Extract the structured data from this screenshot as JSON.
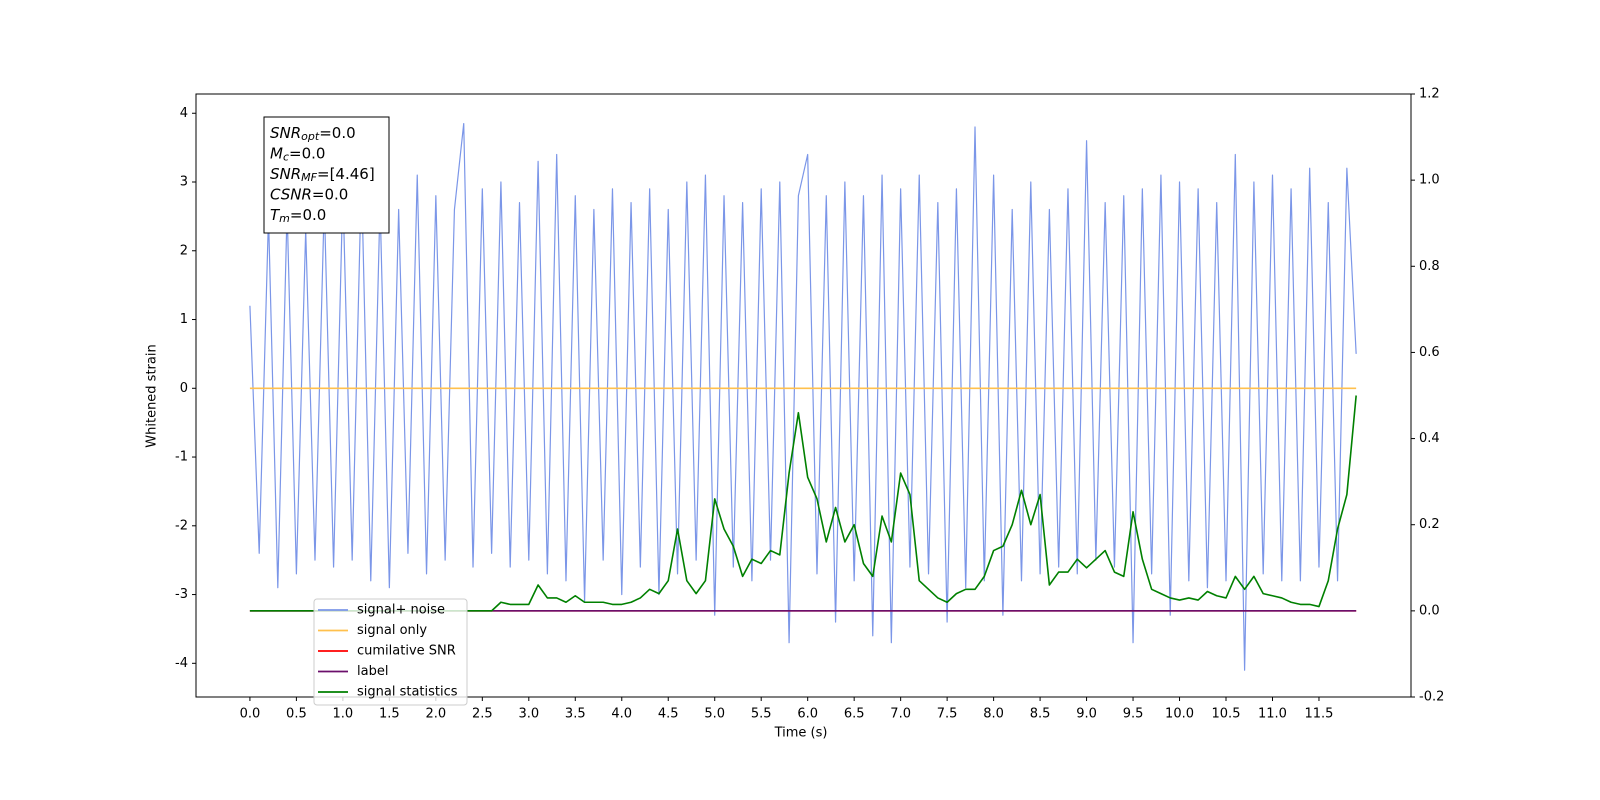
{
  "chart_data": {
    "type": "line",
    "xlabel": "Time (s)",
    "ylabel": "Whitened strain",
    "xlim": [
      -0.58,
      12.49
    ],
    "ylim": [
      -4.49,
      4.28
    ],
    "y2lim": [
      -0.2,
      1.2
    ],
    "xticks": [
      {
        "value": 0,
        "label": "0.0"
      },
      0.5,
      {
        "value": 1,
        "label": "1.0"
      },
      1.5,
      {
        "value": 2,
        "label": "2.0"
      },
      2.5,
      {
        "value": 3,
        "label": "3.0"
      },
      3.5,
      {
        "value": 4,
        "label": "4.0"
      },
      4.5,
      {
        "value": 5,
        "label": "5.0"
      },
      5.5,
      {
        "value": 6,
        "label": "6.0"
      },
      6.5,
      {
        "value": 7,
        "label": "7.0"
      },
      7.5,
      {
        "value": 8,
        "label": "8.0"
      },
      8.5,
      {
        "value": 9,
        "label": "9.0"
      },
      9.5,
      {
        "value": 10,
        "label": "10.0"
      },
      10.5,
      {
        "value": 11,
        "label": "11.0"
      },
      11.5
    ],
    "yticks": [
      -4,
      -3,
      -2,
      -1,
      0,
      1,
      2,
      3,
      4
    ],
    "y2ticks": [
      -0.2,
      {
        "value": 0,
        "label": "0.0"
      },
      0.2,
      0.4,
      0.6,
      0.8,
      {
        "value": 1,
        "label": "1.0"
      },
      1.2
    ],
    "x": [
      0,
      0.1,
      0.2,
      0.3,
      0.4,
      0.5,
      0.6,
      0.7,
      0.8,
      0.9,
      1,
      1.1,
      1.2,
      1.3,
      1.4,
      1.5,
      1.6,
      1.7,
      1.8,
      1.9,
      2,
      2.1,
      2.2,
      2.3,
      2.4,
      2.5,
      2.6,
      2.7,
      2.8,
      2.9,
      3,
      3.1,
      3.2,
      3.3,
      3.4,
      3.5,
      3.6,
      3.7,
      3.8,
      3.9,
      4,
      4.1,
      4.2,
      4.3,
      4.4,
      4.5,
      4.6,
      4.7,
      4.8,
      4.9,
      5,
      5.1,
      5.2,
      5.3,
      5.4,
      5.5,
      5.6,
      5.7,
      5.8,
      5.9,
      6,
      6.1,
      6.2,
      6.3,
      6.4,
      6.5,
      6.6,
      6.7,
      6.8,
      6.9,
      7,
      7.1,
      7.2,
      7.3,
      7.4,
      7.5,
      7.6,
      7.7,
      7.8,
      7.9,
      8,
      8.1,
      8.2,
      8.3,
      8.4,
      8.5,
      8.6,
      8.7,
      8.8,
      8.9,
      9,
      9.1,
      9.2,
      9.3,
      9.4,
      9.5,
      9.6,
      9.7,
      9.8,
      9.9,
      10,
      10.1,
      10.2,
      10.3,
      10.4,
      10.5,
      10.6,
      10.7,
      10.8,
      10.9,
      11,
      11.1,
      11.2,
      11.3,
      11.4,
      11.5,
      11.6,
      11.7,
      11.8,
      11.9
    ],
    "legend": "lower left",
    "series": [
      {
        "name": "signal+ noise",
        "color": "#7b96e8",
        "axis": "y",
        "values": [
          1.2,
          -2.4,
          2.5,
          -2.9,
          2.6,
          -2.7,
          2.3,
          -2.5,
          2.7,
          -2.6,
          2.9,
          -2.5,
          3.1,
          -2.8,
          2.7,
          -2.9,
          2.6,
          -2.4,
          3.1,
          -2.7,
          2.8,
          -2.5,
          2.6,
          3.85,
          -2.6,
          2.9,
          -2.4,
          3.0,
          -2.6,
          2.7,
          -2.5,
          3.3,
          -2.7,
          3.4,
          -2.8,
          2.8,
          -3.1,
          2.6,
          -2.5,
          2.9,
          -3.0,
          2.7,
          -2.6,
          2.9,
          -3.0,
          2.6,
          -2.7,
          3.0,
          -2.5,
          3.1,
          -3.3,
          2.8,
          -2.6,
          2.7,
          -2.8,
          2.9,
          -2.5,
          3.0,
          -3.7,
          2.8,
          3.4,
          -2.7,
          2.8,
          -3.4,
          3.0,
          -2.8,
          2.8,
          -3.6,
          3.1,
          -3.7,
          2.9,
          -2.6,
          3.1,
          -2.7,
          2.7,
          -3.4,
          2.9,
          -2.9,
          3.8,
          -2.8,
          3.1,
          -3.3,
          2.6,
          -2.8,
          3.0,
          -2.7,
          2.6,
          -2.6,
          2.9,
          -2.7,
          3.6,
          -2.5,
          2.7,
          -2.6,
          2.8,
          -3.7,
          2.9,
          -2.7,
          3.1,
          -3.3,
          3.0,
          -2.8,
          2.9,
          -2.9,
          2.7,
          -2.8,
          3.4,
          -4.1,
          3.0,
          -2.7,
          3.1,
          -2.8,
          2.9,
          -2.8,
          3.2,
          -2.6,
          2.7,
          -2.8,
          3.2,
          0.5
        ]
      },
      {
        "name": "signal only",
        "color": "#ffc04d",
        "axis": "y",
        "x": [
          0,
          11.9
        ],
        "values": [
          0,
          0
        ]
      },
      {
        "name": "cumilative SNR",
        "color": "#ff0000",
        "axis": "y2",
        "x": [
          0,
          11.9
        ],
        "values": [
          0,
          0
        ]
      },
      {
        "name": "label",
        "color": "#6b0f6b",
        "axis": "y2",
        "x": [
          0,
          11.9
        ],
        "values": [
          0,
          0
        ]
      },
      {
        "name": "signal statistics",
        "color": "#008000",
        "axis": "y2",
        "values": [
          0,
          0,
          0,
          0,
          0,
          0,
          0,
          0,
          0,
          0,
          0,
          0,
          0,
          0,
          0,
          0,
          0,
          0,
          0,
          0,
          0,
          0,
          0,
          0,
          0,
          0,
          0,
          0.02,
          0.015,
          0.015,
          0.015,
          0.06,
          0.03,
          0.03,
          0.02,
          0.035,
          0.02,
          0.02,
          0.02,
          0.015,
          0.015,
          0.02,
          0.03,
          0.05,
          0.04,
          0.07,
          0.19,
          0.07,
          0.04,
          0.07,
          0.26,
          0.19,
          0.15,
          0.08,
          0.12,
          0.11,
          0.14,
          0.13,
          0.32,
          0.46,
          0.31,
          0.26,
          0.16,
          0.24,
          0.16,
          0.2,
          0.11,
          0.08,
          0.22,
          0.16,
          0.32,
          0.27,
          0.07,
          0.05,
          0.03,
          0.02,
          0.04,
          0.05,
          0.05,
          0.08,
          0.14,
          0.15,
          0.2,
          0.28,
          0.2,
          0.27,
          0.06,
          0.09,
          0.09,
          0.12,
          0.1,
          0.12,
          0.14,
          0.09,
          0.08,
          0.23,
          0.12,
          0.05,
          0.04,
          0.03,
          0.025,
          0.03,
          0.025,
          0.045,
          0.035,
          0.03,
          0.08,
          0.05,
          0.08,
          0.04,
          0.035,
          0.03,
          0.02,
          0.015,
          0.015,
          0.01,
          0.07,
          0.19,
          0.27,
          0.5
        ]
      }
    ],
    "annotations": [
      {
        "text": "SNR",
        "sub": "opt",
        "value": "=0.0"
      },
      {
        "text": "M",
        "sub": "c",
        "value": "=0.0"
      },
      {
        "text": "SNR",
        "sub": "MF",
        "value": "=[4.46]"
      },
      {
        "text": "CSNR",
        "value": "=0.0"
      },
      {
        "text": "T",
        "sub": "m",
        "value": "=0.0"
      }
    ]
  }
}
